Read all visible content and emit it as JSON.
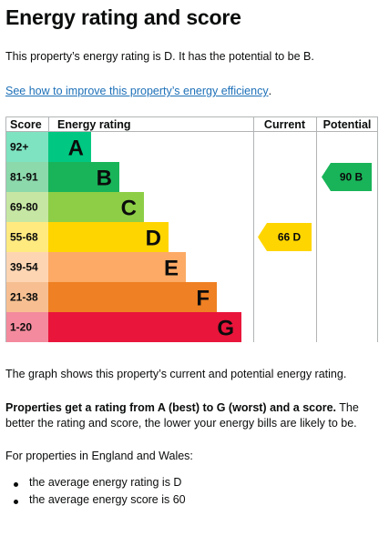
{
  "page": {
    "title": "Energy rating and score",
    "intro": "This property’s energy rating is D. It has the potential to be B.",
    "improve_link": "See how to improve this property’s energy efficiency",
    "improve_link_suffix": ".",
    "graph_caption": "The graph shows this property’s current and potential energy rating.",
    "explainer_bold": "Properties get a rating from A (best) to G (worst) and a score.",
    "explainer_rest": " The better the rating and score, the lower your energy bills are likely to be.",
    "average_intro": "For properties in England and Wales:",
    "average_items": [
      "the average energy rating is D",
      "the average energy score is 60"
    ]
  },
  "chart": {
    "headers": {
      "score": "Score",
      "rating": "Energy rating",
      "current": "Current",
      "potential": "Potential"
    },
    "bands": [
      {
        "range": "92+",
        "letter": "A",
        "color": "#00c781",
        "score_bg": "#7ee3c0"
      },
      {
        "range": "81-91",
        "letter": "B",
        "color": "#19b459",
        "score_bg": "#8cd9ac"
      },
      {
        "range": "69-80",
        "letter": "C",
        "color": "#8dce46",
        "score_bg": "#c6e7a3"
      },
      {
        "range": "55-68",
        "letter": "D",
        "color": "#ffd500",
        "score_bg": "#ffea80"
      },
      {
        "range": "39-54",
        "letter": "E",
        "color": "#fcaa65",
        "score_bg": "#fed5b2"
      },
      {
        "range": "21-38",
        "letter": "F",
        "color": "#ef8023",
        "score_bg": "#f7bf91"
      },
      {
        "range": "1-20",
        "letter": "G",
        "color": "#e9153b",
        "score_bg": "#f48a9d"
      }
    ],
    "current": {
      "score": 66,
      "letter": "D",
      "label": "66 D",
      "color": "#ffd500"
    },
    "potential": {
      "score": 90,
      "letter": "B",
      "label": "90 B",
      "color": "#19b459"
    }
  }
}
